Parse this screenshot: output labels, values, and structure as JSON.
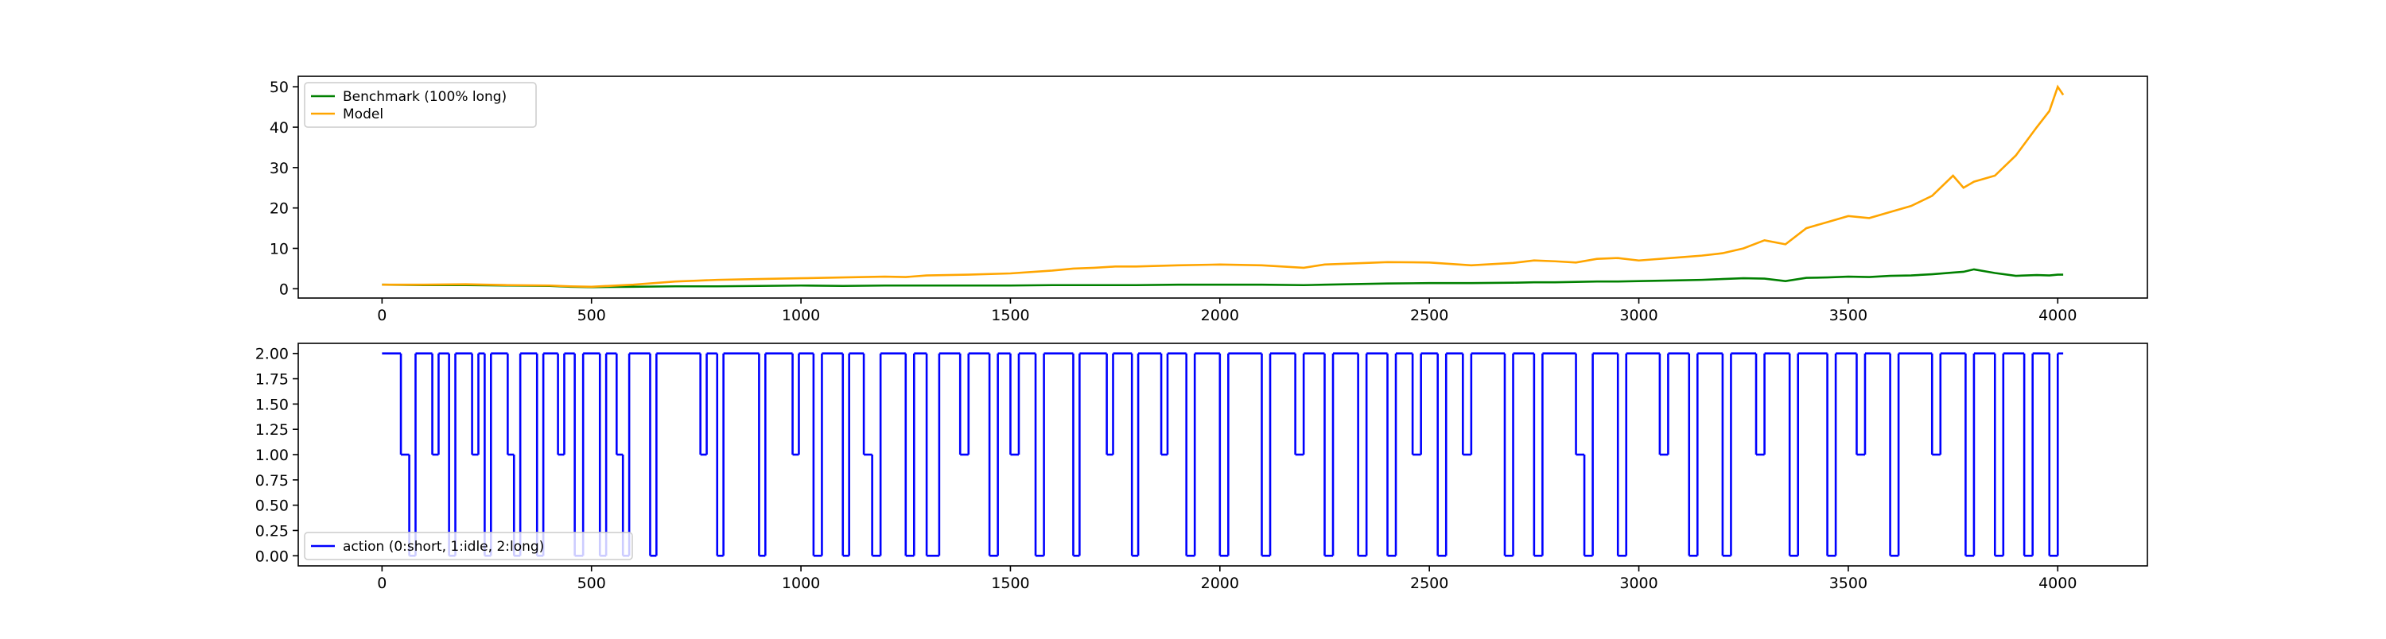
{
  "chart_data": [
    {
      "type": "line",
      "xlim": [
        -200,
        4214
      ],
      "ylim": [
        -2.3,
        52.6
      ],
      "xticks": [
        0,
        500,
        1000,
        1500,
        2000,
        2500,
        3000,
        3500,
        4000
      ],
      "yticks": [
        0,
        10,
        20,
        30,
        40,
        50
      ],
      "legend": "upper left",
      "x": [
        0,
        100,
        200,
        300,
        400,
        450,
        500,
        600,
        700,
        750,
        800,
        900,
        1000,
        1100,
        1200,
        1250,
        1300,
        1400,
        1500,
        1600,
        1650,
        1700,
        1750,
        1800,
        1900,
        2000,
        2100,
        2200,
        2250,
        2300,
        2400,
        2500,
        2600,
        2700,
        2750,
        2800,
        2850,
        2900,
        2950,
        3000,
        3100,
        3150,
        3200,
        3250,
        3300,
        3350,
        3400,
        3450,
        3500,
        3550,
        3600,
        3650,
        3700,
        3750,
        3775,
        3800,
        3850,
        3900,
        3950,
        3980,
        4000,
        4013
      ],
      "series": [
        {
          "name": "Benchmark (100% long)",
          "color": "green",
          "values": [
            1,
            0.9,
            0.9,
            0.8,
            0.7,
            0.5,
            0.4,
            0.5,
            0.6,
            0.6,
            0.6,
            0.7,
            0.8,
            0.7,
            0.8,
            0.8,
            0.8,
            0.8,
            0.8,
            0.9,
            0.9,
            0.9,
            0.9,
            0.9,
            1,
            1,
            1,
            0.9,
            1,
            1.1,
            1.3,
            1.4,
            1.4,
            1.5,
            1.6,
            1.6,
            1.7,
            1.8,
            1.8,
            1.9,
            2.1,
            2.2,
            2.4,
            2.6,
            2.5,
            1.9,
            2.7,
            2.8,
            3,
            2.9,
            3.2,
            3.3,
            3.6,
            4,
            4.2,
            4.8,
            3.9,
            3.2,
            3.4,
            3.3,
            3.5,
            3.5
          ]
        },
        {
          "name": "Model",
          "color": "orange",
          "values": [
            1,
            1,
            1.1,
            0.9,
            0.8,
            0.6,
            0.5,
            1,
            1.8,
            2,
            2.2,
            2.4,
            2.6,
            2.8,
            3,
            2.9,
            3.3,
            3.5,
            3.8,
            4.5,
            5,
            5.2,
            5.5,
            5.5,
            5.8,
            6,
            5.8,
            5.2,
            6,
            6.2,
            6.6,
            6.5,
            5.8,
            6.4,
            7,
            6.8,
            6.5,
            7.4,
            7.6,
            7,
            7.8,
            8.2,
            8.8,
            10,
            12,
            11,
            15,
            16.5,
            18,
            17.5,
            19,
            20.5,
            23,
            28,
            25,
            26.5,
            28,
            33,
            40,
            44,
            50,
            48
          ]
        }
      ]
    },
    {
      "type": "step",
      "drawstyle": "steps-post",
      "xlim": [
        -200,
        4214
      ],
      "ylim": [
        -0.1,
        2.1
      ],
      "xticks": [
        0,
        500,
        1000,
        1500,
        2000,
        2500,
        3000,
        3500,
        4000
      ],
      "yticks": [
        {
          "value": 0,
          "label": "0.00"
        },
        {
          "value": 0.25,
          "label": "0.25"
        },
        {
          "value": 0.5,
          "label": "0.50"
        },
        {
          "value": 0.75,
          "label": "0.75"
        },
        {
          "value": 1,
          "label": "1.00"
        },
        {
          "value": 1.25,
          "label": "1.25"
        },
        {
          "value": 1.5,
          "label": "1.50"
        },
        {
          "value": 1.75,
          "label": "1.75"
        },
        {
          "value": 2,
          "label": "2.00"
        }
      ],
      "legend": "lower left",
      "x": [
        0,
        45,
        65,
        80,
        120,
        135,
        160,
        175,
        215,
        230,
        245,
        260,
        300,
        315,
        330,
        370,
        385,
        420,
        435,
        460,
        480,
        520,
        535,
        560,
        575,
        590,
        640,
        655,
        760,
        775,
        800,
        815,
        900,
        915,
        980,
        995,
        1030,
        1050,
        1100,
        1115,
        1150,
        1170,
        1190,
        1250,
        1270,
        1300,
        1330,
        1380,
        1400,
        1450,
        1470,
        1500,
        1520,
        1560,
        1580,
        1650,
        1665,
        1730,
        1745,
        1790,
        1805,
        1860,
        1875,
        1920,
        1940,
        2000,
        2020,
        2100,
        2120,
        2180,
        2200,
        2250,
        2270,
        2330,
        2350,
        2400,
        2420,
        2460,
        2480,
        2520,
        2540,
        2580,
        2600,
        2680,
        2700,
        2750,
        2770,
        2850,
        2870,
        2890,
        2950,
        2970,
        3050,
        3070,
        3120,
        3140,
        3200,
        3220,
        3280,
        3300,
        3360,
        3380,
        3450,
        3470,
        3520,
        3540,
        3600,
        3620,
        3700,
        3720,
        3780,
        3800,
        3850,
        3870,
        3920,
        3940,
        3980,
        4000,
        4013
      ],
      "series": [
        {
          "name": "action (0:short, 1:idle, 2:long)",
          "color": "blue",
          "values": [
            2,
            1,
            0,
            2,
            1,
            2,
            0,
            2,
            1,
            2,
            0,
            2,
            1,
            0,
            2,
            0,
            2,
            1,
            2,
            0,
            2,
            0,
            2,
            1,
            0,
            2,
            0,
            2,
            1,
            2,
            0,
            2,
            0,
            2,
            1,
            2,
            0,
            2,
            0,
            2,
            1,
            0,
            2,
            0,
            2,
            0,
            2,
            1,
            2,
            0,
            2,
            1,
            2,
            0,
            2,
            0,
            2,
            1,
            2,
            0,
            2,
            1,
            2,
            0,
            2,
            0,
            2,
            0,
            2,
            1,
            2,
            0,
            2,
            0,
            2,
            0,
            2,
            1,
            2,
            0,
            2,
            1,
            2,
            0,
            2,
            0,
            2,
            1,
            0,
            2,
            0,
            2,
            1,
            2,
            0,
            2,
            0,
            2,
            1,
            2,
            0,
            2,
            0,
            2,
            1,
            2,
            0,
            2,
            1,
            2,
            0,
            2,
            0,
            2,
            0,
            2,
            0,
            2,
            2
          ]
        }
      ]
    }
  ]
}
